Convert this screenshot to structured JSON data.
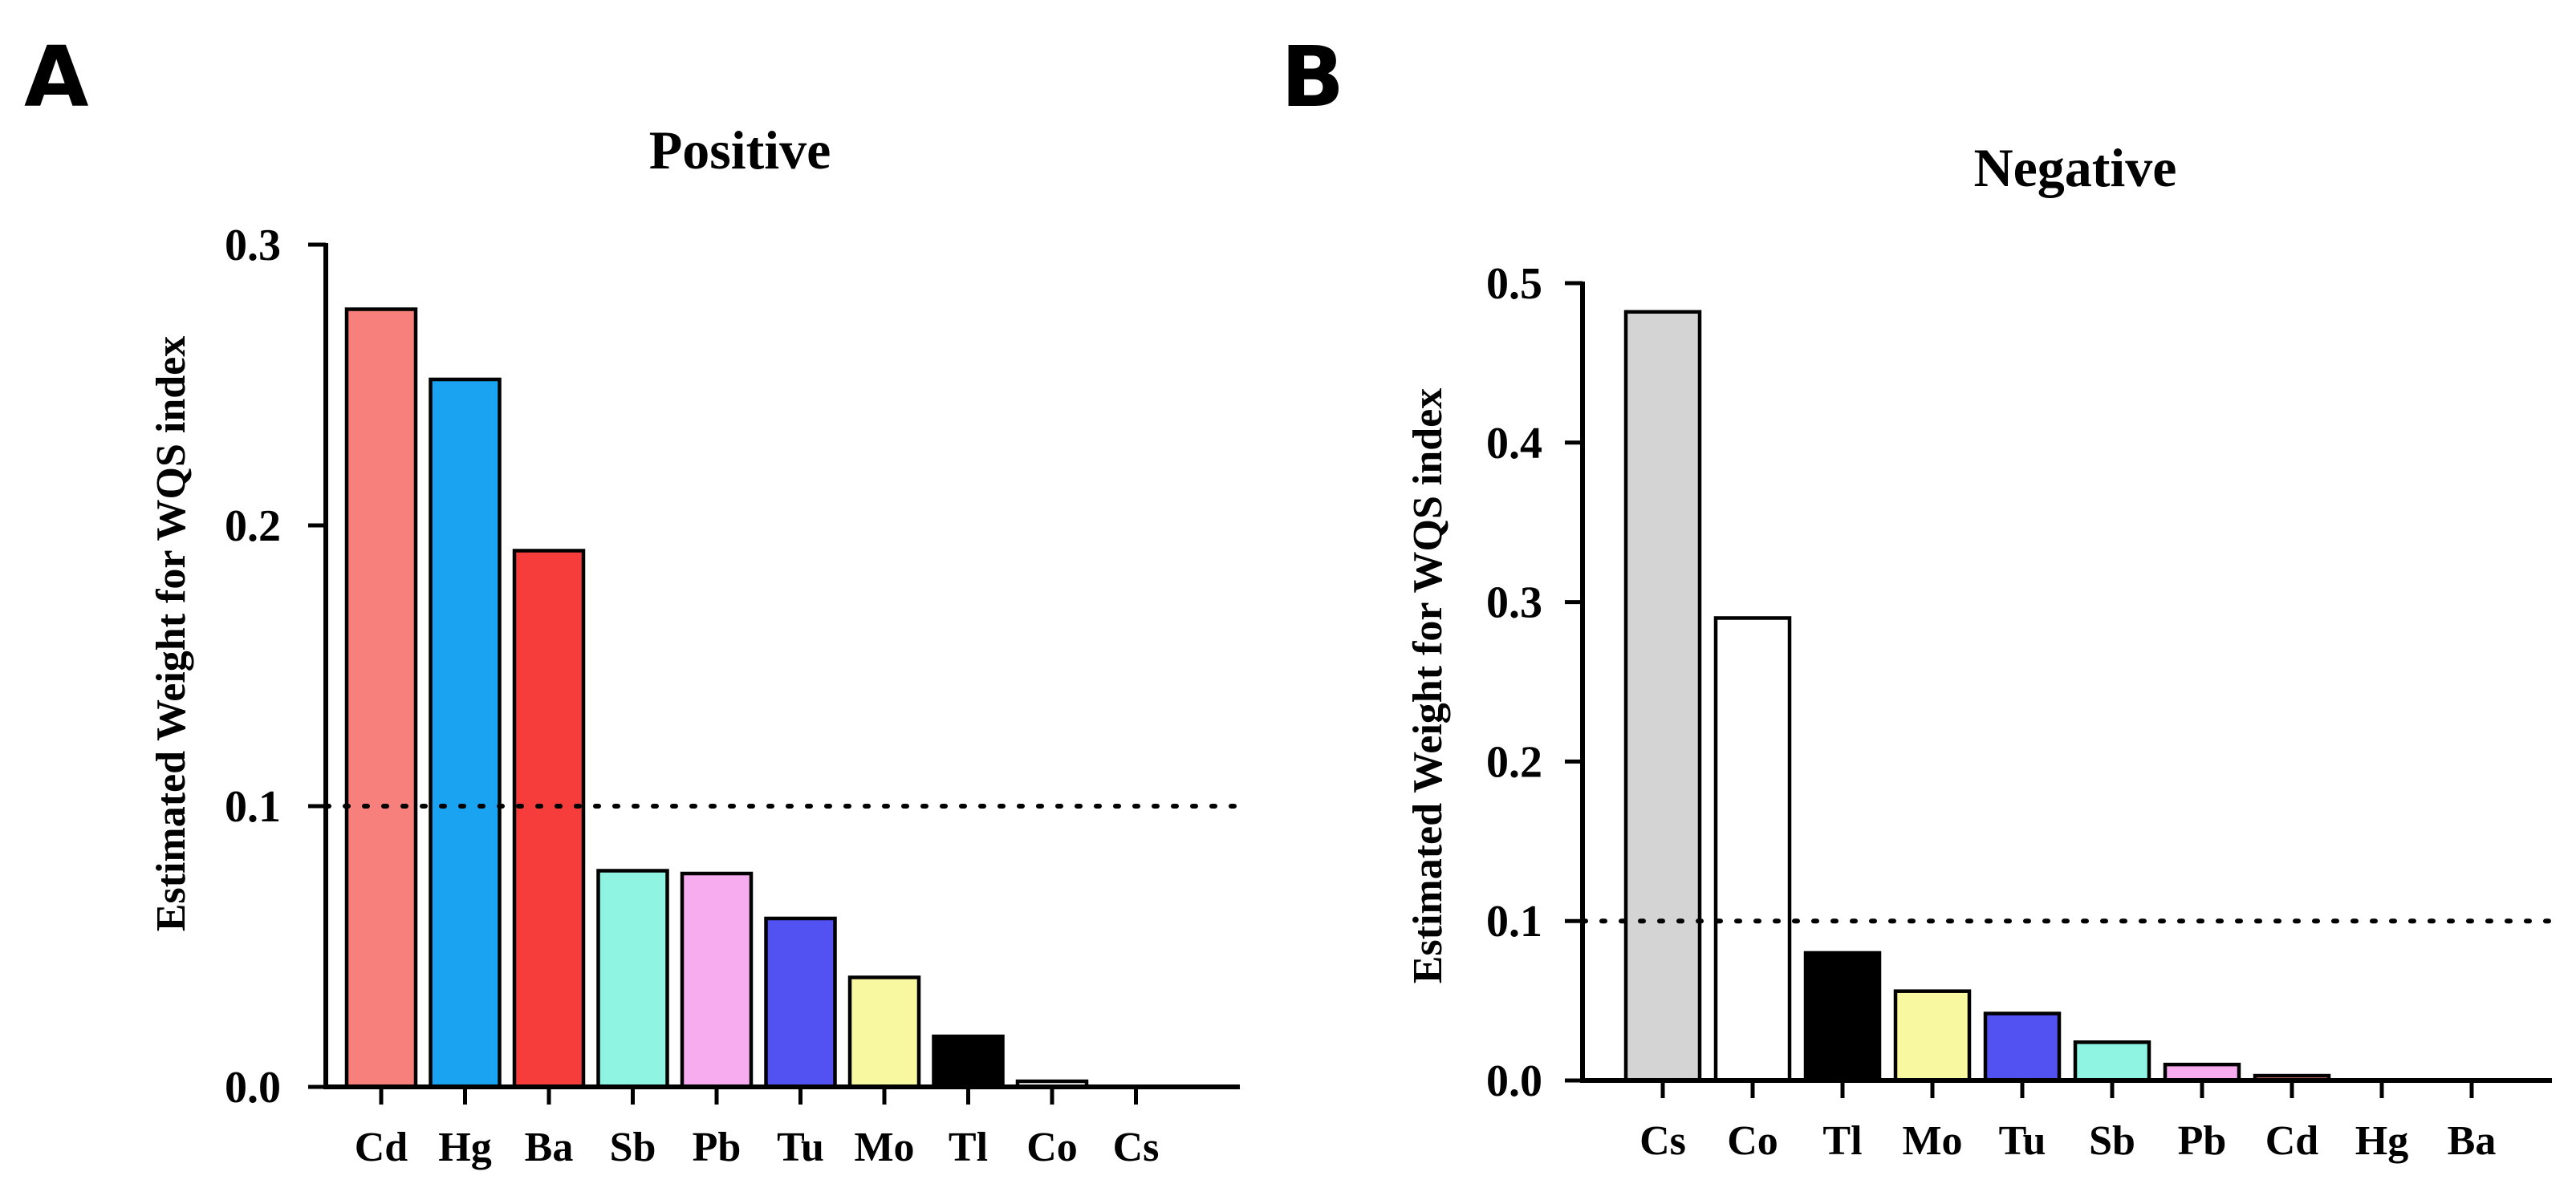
{
  "chart_data": [
    {
      "type": "bar",
      "panel": "A",
      "title": "Positive",
      "ylabel": "Estimated Weight for WQS  index",
      "xlabel": "",
      "ylim": [
        0,
        0.3
      ],
      "yticks": [
        "0.0",
        "0.1",
        "0.2",
        "0.3"
      ],
      "reference_line": 0.1,
      "categories": [
        "Cd",
        "Hg",
        "Ba",
        "Sb",
        "Pb",
        "Tu",
        "Mo",
        "Tl",
        "Co",
        "Cs"
      ],
      "values": [
        0.277,
        0.252,
        0.191,
        0.077,
        0.076,
        0.06,
        0.039,
        0.018,
        0.002,
        0.0
      ],
      "colors": [
        "#f77f7c",
        "#1aa3f0",
        "#f73c3c",
        "#8ff5e2",
        "#f7acf0",
        "#5252f2",
        "#f8f8a0",
        "#000000",
        "#ffffff",
        "#ffffff"
      ]
    },
    {
      "type": "bar",
      "panel": "B",
      "title": "Negative",
      "ylabel": "Estimated Weight for WQS  index",
      "xlabel": "",
      "ylim": [
        0,
        0.5
      ],
      "yticks": [
        "0.0",
        "0.1",
        "0.2",
        "0.3",
        "0.4",
        "0.5"
      ],
      "reference_line": 0.1,
      "categories": [
        "Cs",
        "Co",
        "Tl",
        "Mo",
        "Tu",
        "Sb",
        "Pb",
        "Cd",
        "Hg",
        "Ba"
      ],
      "values": [
        0.482,
        0.29,
        0.08,
        0.056,
        0.042,
        0.024,
        0.01,
        0.003,
        0.0,
        0.0
      ],
      "colors": [
        "#d4d4d4",
        "#ffffff",
        "#000000",
        "#f8f8a0",
        "#5252f2",
        "#8ff5e2",
        "#f7acf0",
        "#f77f7c",
        "#1aa3f0",
        "#f73c3c"
      ]
    }
  ]
}
